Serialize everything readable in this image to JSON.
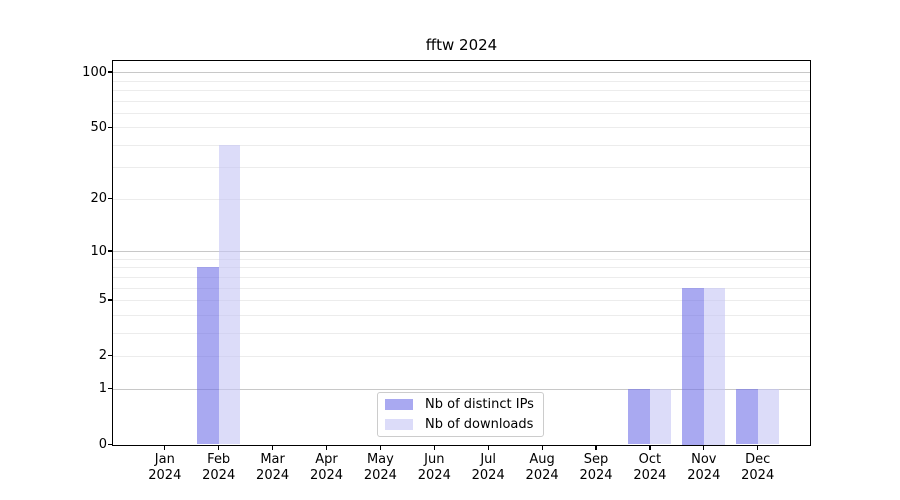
{
  "title": "fftw 2024",
  "colors": {
    "bar_distinct_ips": "rgba(112,112,232,0.6)",
    "bar_downloads": "rgba(197,197,245,0.6)",
    "grid_minor": "#ececec",
    "grid_major": "#c8c8c8",
    "spine": "#000000",
    "legend_border": "#cccccc",
    "text": "#000000",
    "background": "#ffffff"
  },
  "legend": {
    "items": [
      {
        "label": "Nb of distinct IPs"
      },
      {
        "label": "Nb of downloads"
      }
    ]
  },
  "chart_data": {
    "type": "bar",
    "title": "fftw 2024",
    "categories": [
      "Jan 2024",
      "Feb 2024",
      "Mar 2024",
      "Apr 2024",
      "May 2024",
      "Jun 2024",
      "Jul 2024",
      "Aug 2024",
      "Sep 2024",
      "Oct 2024",
      "Nov 2024",
      "Dec 2024"
    ],
    "series": [
      {
        "name": "Nb of distinct IPs",
        "color_key": "bar_distinct_ips",
        "values": [
          0,
          8,
          0,
          0,
          0,
          0,
          0,
          0,
          0,
          1,
          6,
          1
        ]
      },
      {
        "name": "Nb of downloads",
        "color_key": "bar_downloads",
        "values": [
          0,
          40,
          0,
          0,
          0,
          0,
          0,
          0,
          0,
          1,
          6,
          1
        ]
      }
    ],
    "yscale": "log(1+x)",
    "yticks": [
      0,
      1,
      2,
      5,
      10,
      20,
      50,
      100
    ],
    "ylim": [
      0,
      115
    ],
    "xlabel": "",
    "ylabel": "",
    "grid": true,
    "grid_minor_values": [
      2,
      3,
      4,
      5,
      6,
      7,
      8,
      9,
      20,
      30,
      40,
      50,
      60,
      70,
      80,
      90
    ],
    "grid_major_values": [
      1,
      10,
      100
    ],
    "legend_position": "lower center"
  }
}
